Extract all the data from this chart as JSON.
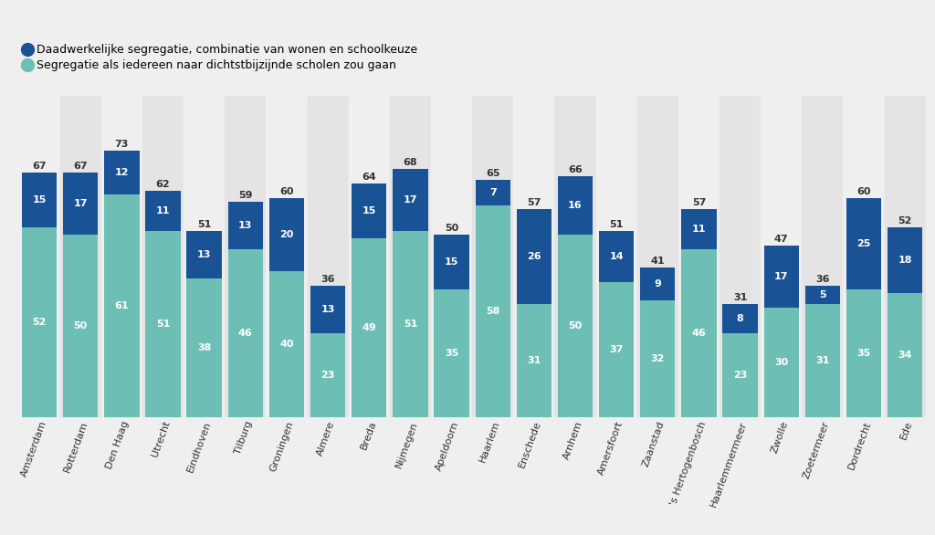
{
  "cities": [
    "Amsterdam",
    "Rotterdam",
    "Den Haag",
    "Utrecht",
    "Eindhoven",
    "Tilburg",
    "Groningen",
    "Almere",
    "Breda",
    "Nijmegen",
    "Apeldoorn",
    "Haarlem",
    "Enschede",
    "Arnhem",
    "Amersfoort",
    "Zaanstad",
    "'s Hertogenbosch",
    "Haarlemmermeer",
    "Zwolle",
    "Zoetermeer",
    "Dordrecht",
    "Ede"
  ],
  "green_values": [
    52,
    50,
    61,
    51,
    38,
    46,
    40,
    23,
    49,
    51,
    35,
    58,
    31,
    50,
    37,
    32,
    46,
    23,
    30,
    31,
    35,
    34
  ],
  "blue_values": [
    15,
    17,
    12,
    11,
    13,
    13,
    20,
    13,
    15,
    17,
    15,
    7,
    26,
    16,
    14,
    9,
    11,
    8,
    17,
    5,
    25,
    18
  ],
  "totals": [
    67,
    67,
    73,
    62,
    51,
    59,
    60,
    36,
    64,
    68,
    50,
    65,
    57,
    66,
    51,
    41,
    57,
    31,
    47,
    36,
    60,
    52
  ],
  "color_blue": "#1a5296",
  "color_green": "#6dbfb5",
  "legend_blue": "Daadwerkelijke segregatie, combinatie van wonen en schoolkeuze",
  "legend_green": "Segregatie als iedereen naar dichtstbijzijnde scholen zou gaan",
  "background_color": "#efefef",
  "col_light": "#e8e8e8",
  "col_dark": "#d8d8d8"
}
